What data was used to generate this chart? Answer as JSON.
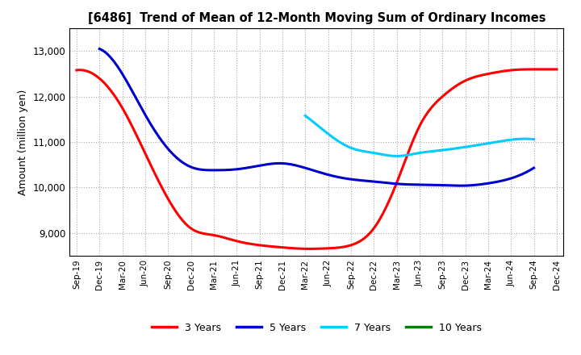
{
  "title": "[6486]  Trend of Mean of 12-Month Moving Sum of Ordinary Incomes",
  "ylabel": "Amount (million yen)",
  "background_color": "#ffffff",
  "grid_color": "#aaaaaa",
  "ylim": [
    8500,
    13500
  ],
  "yticks": [
    9000,
    10000,
    11000,
    12000,
    13000
  ],
  "x_labels": [
    "Sep-19",
    "Dec-19",
    "Mar-20",
    "Jun-20",
    "Sep-20",
    "Dec-20",
    "Mar-21",
    "Jun-21",
    "Sep-21",
    "Dec-21",
    "Mar-22",
    "Jun-22",
    "Sep-22",
    "Dec-22",
    "Mar-23",
    "Jun-23",
    "Sep-23",
    "Dec-23",
    "Mar-24",
    "Jun-24",
    "Sep-24",
    "Dec-24"
  ],
  "series": {
    "3 Years": {
      "color": "#ff0000",
      "values": [
        12580,
        12400,
        11750,
        10750,
        9750,
        9100,
        8950,
        8820,
        8730,
        8680,
        8650,
        8660,
        8730,
        9100,
        10100,
        11350,
        12000,
        12350,
        12500,
        12580,
        12600,
        12600
      ]
    },
    "5 Years": {
      "color": "#0000cc",
      "values": [
        null,
        13050,
        12500,
        11600,
        10850,
        10450,
        10380,
        10400,
        10480,
        10530,
        10430,
        10280,
        10180,
        10130,
        10080,
        10060,
        10050,
        10040,
        10090,
        10200,
        10430,
        null
      ]
    },
    "7 Years": {
      "color": "#00ccff",
      "values": [
        null,
        null,
        null,
        null,
        null,
        null,
        null,
        null,
        null,
        null,
        11580,
        11180,
        10870,
        10760,
        10690,
        10760,
        10820,
        10890,
        10970,
        11050,
        11060,
        null
      ]
    },
    "10 Years": {
      "color": "#008000",
      "values": [
        null,
        null,
        null,
        null,
        null,
        null,
        null,
        null,
        null,
        null,
        null,
        null,
        null,
        null,
        null,
        null,
        null,
        null,
        null,
        null,
        null,
        null
      ]
    }
  },
  "legend_entries": [
    "3 Years",
    "5 Years",
    "7 Years",
    "10 Years"
  ],
  "legend_colors": [
    "#ff0000",
    "#0000cc",
    "#00ccff",
    "#008000"
  ]
}
